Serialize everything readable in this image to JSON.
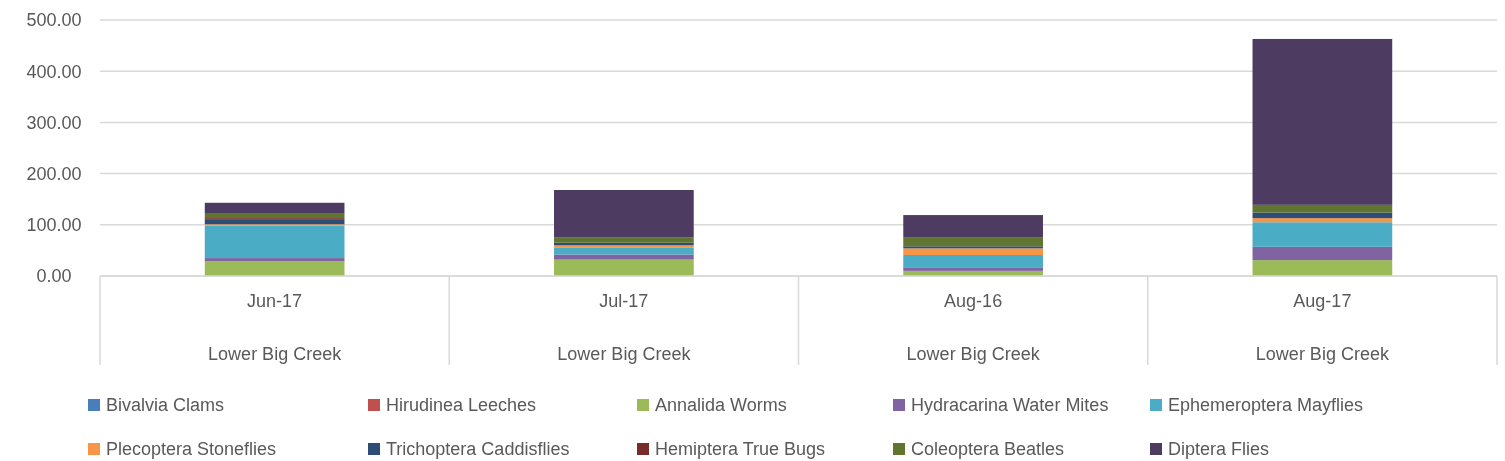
{
  "chart_data": {
    "type": "bar",
    "stacked": true,
    "categories": [
      "Jun-17",
      "Jul-17",
      "Aug-16",
      "Aug-17"
    ],
    "series": [
      {
        "name": "Bivalvia Clams",
        "color": "#4a7ebb",
        "values": [
          0,
          0,
          0,
          0
        ]
      },
      {
        "name": "Hirudinea Leeches",
        "color": "#c0504d",
        "values": [
          0,
          0,
          0,
          0
        ]
      },
      {
        "name": "Annalida Worms",
        "color": "#9bbb59",
        "values": [
          29,
          32,
          10,
          31
        ]
      },
      {
        "name": "Hydracarina Water Mites",
        "color": "#8064a2",
        "values": [
          6,
          10,
          7,
          26
        ]
      },
      {
        "name": "Ephemeroptera Mayflies",
        "color": "#4bacc6",
        "values": [
          63,
          14,
          24,
          48
        ]
      },
      {
        "name": "Plecoptera Stoneflies",
        "color": "#f79646",
        "values": [
          3,
          4,
          13,
          8
        ]
      },
      {
        "name": "Trichoptera Caddisflies",
        "color": "#2c4d75",
        "values": [
          10,
          5,
          4,
          11
        ]
      },
      {
        "name": "Hemiptera True Bugs",
        "color": "#772c2a",
        "values": [
          2,
          0,
          0,
          0
        ]
      },
      {
        "name": "Coleoptera Beatles",
        "color": "#5f7530",
        "values": [
          10,
          10,
          18,
          15
        ]
      },
      {
        "name": "Diptera Flies",
        "color": "#4d3b62",
        "values": [
          20,
          93,
          43,
          324
        ]
      }
    ],
    "ylim": [
      0,
      500
    ],
    "yticks": [
      {
        "value": 0,
        "label": "0.00"
      },
      {
        "value": 100,
        "label": "100.00"
      },
      {
        "value": 200,
        "label": "200.00"
      },
      {
        "value": 300,
        "label": "300.00"
      },
      {
        "value": 400,
        "label": "400.00"
      },
      {
        "value": 500,
        "label": "500.00"
      }
    ],
    "grid": "y",
    "legend": "bottom",
    "annotations": [
      "Lower Big Creek",
      "Lower Big Creek",
      "Lower Big Creek",
      "Lower Big Creek"
    ]
  }
}
